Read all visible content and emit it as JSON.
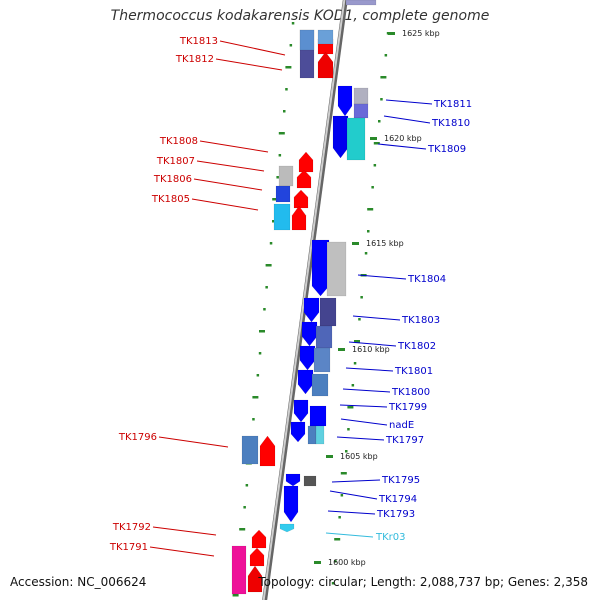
{
  "title": "Thermococcus kodakarensis KOD1, complete genome",
  "footer": {
    "accession": "Accession: NC_006624",
    "summary": "Topology: circular; Length: 2,088,737 bp; Genes: 2,358"
  },
  "colors": {
    "left_label": "#cc0000",
    "right_label": "#0000cc",
    "rna_label": "#33bbdd",
    "tick": "#2a8a2a",
    "backbone": "#888888"
  },
  "scale_labels": [
    "1625 kbp",
    "1620 kbp",
    "1615 kbp",
    "1610 kbp",
    "1605 kbp",
    "1600 kbp"
  ],
  "left_genes": [
    "TK1813",
    "TK1812",
    "TK1808",
    "TK1807",
    "TK1806",
    "TK1805",
    "TK1796",
    "TK1792",
    "TK1791"
  ],
  "right_genes": [
    "TK1811",
    "TK1810",
    "TK1809",
    "TK1804",
    "TK1803",
    "TK1802",
    "TK1801",
    "TK1800",
    "TK1799",
    "nadE",
    "TK1797",
    "TK1795",
    "TK1794",
    "TK1793"
  ],
  "rna_genes": [
    "TKr03"
  ]
}
